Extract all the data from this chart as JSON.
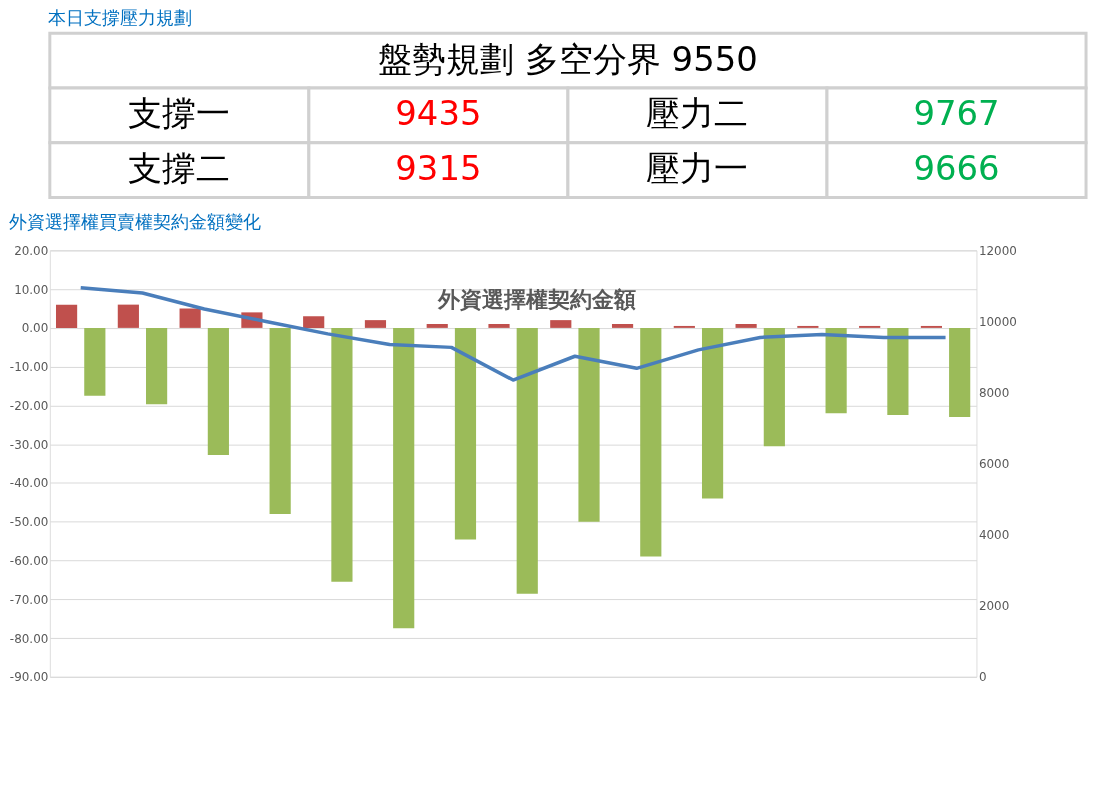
{
  "chart_data": [
    {
      "type": "other",
      "title": "本日支撐壓力規劃",
      "annotations": [
        "盤勢規劃 多空分界 9550",
        "支撐一",
        "9435",
        "壓力二",
        "9767",
        "支撐二",
        "9315",
        "壓力一",
        "9666"
      ],
      "colors": [
        "#000000",
        "#000000",
        "#ff0000",
        "#000000",
        "#00b050",
        "#000000",
        "#ff0000",
        "#000000",
        "#00b050"
      ]
    },
    {
      "type": "bar",
      "title": "外資選擇權買賣權契約金額變化",
      "annotations": [
        "外資選擇權契約金額"
      ],
      "categories": [
        null,
        null,
        null,
        null,
        null,
        null,
        null,
        null,
        null,
        null,
        null,
        null,
        null,
        null,
        null
      ],
      "series": [
        {
          "color": "#c0504d",
          "values": [
            6,
            6,
            5,
            4,
            3,
            2,
            1,
            1,
            2,
            1,
            0.5,
            1,
            0.5,
            0.5,
            0.5
          ]
        },
        {
          "color": "#9bbb59",
          "values": [
            -17.5,
            -19.7,
            -32.8,
            -48,
            -65.5,
            -77.5,
            -54.6,
            -68.6,
            -50,
            -59,
            -44,
            -30.5,
            -22,
            -22.5,
            -23
          ]
        },
        {
          "type": "line",
          "axis": "y2",
          "color": "#4a7ebb",
          "values": [
            10950,
            10800,
            10350,
            10000,
            9650,
            9350,
            9270,
            8350,
            9020,
            8680,
            9200,
            9550,
            9630,
            9550,
            9550
          ]
        }
      ],
      "ylim": [
        -90,
        20
      ],
      "yticks": [
        {
          "value": 20,
          "label": "20.00"
        },
        {
          "value": 10,
          "label": "10.00"
        },
        {
          "value": 0,
          "label": "0.00"
        },
        {
          "value": -10,
          "label": "-10.00"
        },
        {
          "value": -20,
          "label": "-20.00"
        },
        {
          "value": -30,
          "label": "-30.00"
        },
        {
          "value": -40,
          "label": "-40.00"
        },
        {
          "value": -50,
          "label": "-50.00"
        },
        {
          "value": -60,
          "label": "-60.00"
        },
        {
          "value": -70,
          "label": "-70.00"
        },
        {
          "value": -80,
          "label": "-80.00"
        },
        {
          "value": -90,
          "label": "-90.00"
        }
      ],
      "y2lim": [
        0,
        12000
      ],
      "y2ticks": [
        0,
        2000,
        4000,
        6000,
        8000,
        10000,
        12000
      ],
      "grid": "y",
      "tick_labels": "y"
    }
  ]
}
